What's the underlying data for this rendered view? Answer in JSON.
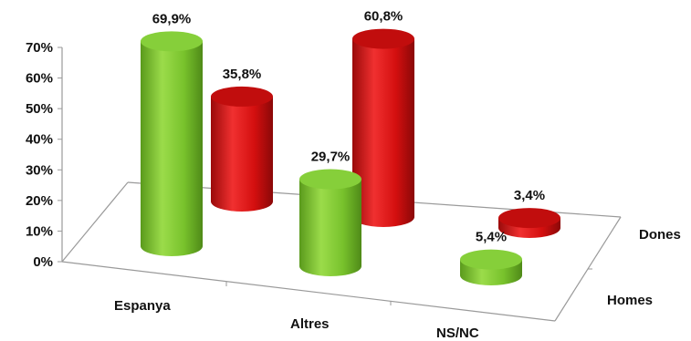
{
  "chart_data": {
    "type": "bar",
    "style": "3d-cylinder",
    "categories": [
      "Espanya",
      "Altres",
      "NS/NC"
    ],
    "series": [
      {
        "name": "Homes",
        "values": [
          69.9,
          29.7,
          5.4
        ],
        "labels": [
          "69,9%",
          "29,7%",
          "5,4%"
        ],
        "color": "#78c22c"
      },
      {
        "name": "Dones",
        "values": [
          35.8,
          60.8,
          3.4
        ],
        "labels": [
          "35,8%",
          "60,8%",
          "3,4%"
        ],
        "color": "#d40f0f"
      }
    ],
    "y_ticks": [
      "0%",
      "10%",
      "20%",
      "30%",
      "40%",
      "50%",
      "60%",
      "70%"
    ],
    "ylim": [
      0,
      70
    ],
    "title": "",
    "xlabel": "",
    "ylabel": "",
    "grid": false,
    "legend": "none"
  }
}
